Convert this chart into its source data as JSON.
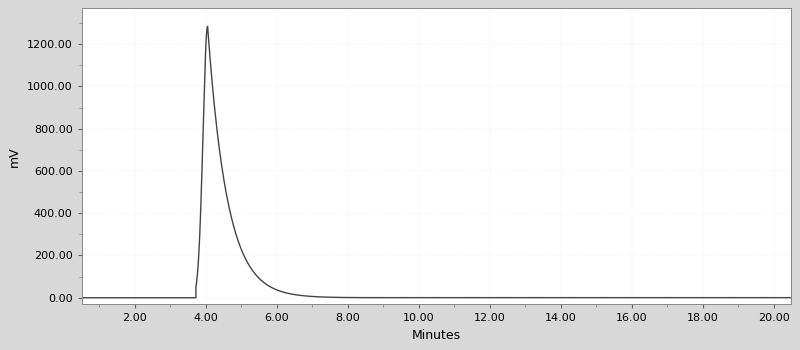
{
  "xlabel": "Minutes",
  "ylabel": "mV",
  "xlim": [
    0.5,
    20.5
  ],
  "ylim": [
    -30,
    1370
  ],
  "xticks": [
    2.0,
    4.0,
    6.0,
    8.0,
    10.0,
    12.0,
    14.0,
    16.0,
    18.0,
    20.0
  ],
  "yticks": [
    0.0,
    200.0,
    400.0,
    600.0,
    800.0,
    1000.0,
    1200.0
  ],
  "peak_time": 4.05,
  "peak_height": 1285,
  "rise_start": 3.72,
  "line_color": "#444444",
  "bg_color": "#d8d8d8",
  "plot_bg_color": "#ffffff",
  "line_width": 1.0,
  "xlabel_fontsize": 9,
  "ylabel_fontsize": 9,
  "tick_fontsize": 8,
  "rise_sigma": 0.13,
  "decay_tau": 0.55
}
